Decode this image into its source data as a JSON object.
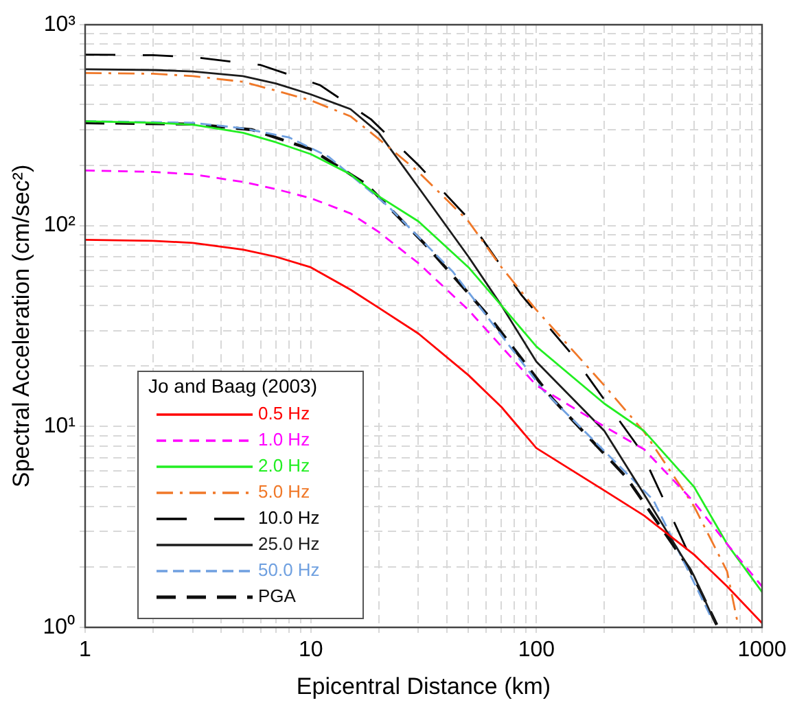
{
  "chart_data": {
    "type": "line",
    "xlabel": "Epicentral Distance (km)",
    "ylabel": "Spectral Acceleration (cm/sec²)",
    "legend_title": "Jo and Baag (2003)",
    "log": "xy",
    "grid": true,
    "legend": "bottom left",
    "marker": "none",
    "xlim": [
      1,
      1000
    ],
    "ylim": [
      1,
      1000
    ],
    "xticks": [
      1,
      {
        "value": 2,
        "label": null
      },
      {
        "value": 3,
        "label": null
      },
      {
        "value": 4,
        "label": null
      },
      {
        "value": 5,
        "label": null
      },
      {
        "value": 6,
        "label": null
      },
      {
        "value": 7,
        "label": null
      },
      {
        "value": 8,
        "label": null
      },
      {
        "value": 9,
        "label": null
      },
      10,
      {
        "value": 20,
        "label": null
      },
      {
        "value": 30,
        "label": null
      },
      {
        "value": 40,
        "label": null
      },
      {
        "value": 50,
        "label": null
      },
      {
        "value": 60,
        "label": null
      },
      {
        "value": 70,
        "label": null
      },
      {
        "value": 80,
        "label": null
      },
      {
        "value": 90,
        "label": null
      },
      100,
      {
        "value": 200,
        "label": null
      },
      {
        "value": 300,
        "label": null
      },
      {
        "value": 400,
        "label": null
      },
      {
        "value": 500,
        "label": null
      },
      {
        "value": 600,
        "label": null
      },
      {
        "value": 700,
        "label": null
      },
      {
        "value": 800,
        "label": null
      },
      {
        "value": 900,
        "label": null
      },
      1000
    ],
    "yticks": [
      {
        "value": 1,
        "label": "10⁰"
      },
      {
        "value": 2,
        "label": null
      },
      {
        "value": 3,
        "label": null
      },
      {
        "value": 4,
        "label": null
      },
      {
        "value": 5,
        "label": null
      },
      {
        "value": 6,
        "label": null
      },
      {
        "value": 7,
        "label": null
      },
      {
        "value": 8,
        "label": null
      },
      {
        "value": 9,
        "label": null
      },
      {
        "value": 10,
        "label": "10¹"
      },
      {
        "value": 20,
        "label": null
      },
      {
        "value": 30,
        "label": null
      },
      {
        "value": 40,
        "label": null
      },
      {
        "value": 50,
        "label": null
      },
      {
        "value": 60,
        "label": null
      },
      {
        "value": 70,
        "label": null
      },
      {
        "value": 80,
        "label": null
      },
      {
        "value": 90,
        "label": null
      },
      {
        "value": 100,
        "label": "10²"
      },
      {
        "value": 200,
        "label": null
      },
      {
        "value": 300,
        "label": null
      },
      {
        "value": 400,
        "label": null
      },
      {
        "value": 500,
        "label": null
      },
      {
        "value": 600,
        "label": null
      },
      {
        "value": 700,
        "label": null
      },
      {
        "value": 800,
        "label": null
      },
      {
        "value": 900,
        "label": null
      },
      {
        "value": 1000,
        "label": "10³"
      }
    ],
    "series": [
      {
        "name": "0.5 Hz",
        "color": "#ff0000",
        "line_style": "solid",
        "x": [
          1,
          2,
          3,
          5,
          7,
          10,
          15,
          20,
          30,
          50,
          70,
          100,
          200,
          300,
          500,
          700,
          1000
        ],
        "values": [
          85,
          84,
          82,
          76,
          70,
          62,
          48,
          39,
          29,
          18,
          12.5,
          7.8,
          4.8,
          3.6,
          2.3,
          1.6,
          1.05
        ]
      },
      {
        "name": "1.0 Hz",
        "color": "#ff00ff",
        "line_style": "dashed",
        "x": [
          1,
          2,
          3,
          5,
          7,
          10,
          15,
          20,
          30,
          50,
          70,
          100,
          200,
          300,
          500,
          700,
          1000
        ],
        "values": [
          188,
          185,
          180,
          165,
          152,
          137,
          115,
          93,
          65,
          38,
          25,
          16,
          10,
          7.7,
          4.2,
          2.6,
          1.6
        ]
      },
      {
        "name": "2.0 Hz",
        "color": "#22ee22",
        "line_style": "solid",
        "x": [
          1,
          2,
          3,
          5,
          7,
          10,
          15,
          20,
          30,
          50,
          70,
          100,
          200,
          300,
          500,
          700,
          1000
        ],
        "values": [
          331,
          325,
          318,
          290,
          260,
          227,
          180,
          140,
          105,
          62,
          40,
          25,
          13,
          9.5,
          5,
          2.6,
          1.5
        ]
      },
      {
        "name": "5.0 Hz",
        "color": "#f07828",
        "line_style": "dashed",
        "x": [
          1,
          2,
          3,
          5,
          7,
          10,
          15,
          20,
          30,
          50,
          70,
          100,
          200,
          300,
          500,
          700,
          780
        ],
        "values": [
          575,
          570,
          555,
          520,
          470,
          420,
          350,
          270,
          185,
          105,
          62,
          38,
          16,
          9.4,
          4,
          1.9,
          1.05
        ]
      },
      {
        "name": "10.0 Hz",
        "color": "#000000",
        "line_style": "dashed",
        "x": [
          1,
          2,
          3,
          6,
          11,
          18.5,
          30,
          49,
          86,
          143,
          290,
          400,
          510
        ],
        "values": [
          710,
          705,
          690,
          630,
          500,
          338,
          200,
          111,
          45,
          23,
          7.6,
          3.5,
          1.94
        ]
      },
      {
        "name": "25.0 Hz",
        "color": "#1c1c1c",
        "line_style": "solid",
        "x": [
          1,
          2,
          3,
          5,
          7,
          10,
          15,
          20,
          30,
          50,
          70,
          100,
          200,
          300,
          500,
          620
        ],
        "values": [
          600,
          595,
          585,
          555,
          510,
          450,
          380,
          290,
          155,
          70,
          40,
          21,
          9.5,
          4.6,
          1.8,
          1.05
        ]
      },
      {
        "name": "50.0 Hz",
        "color": "#6fa0e0",
        "line_style": "dashed",
        "x": [
          1,
          3,
          5,
          8,
          12,
          22,
          42.6,
          108,
          180,
          330,
          600
        ],
        "values": [
          331,
          325,
          305,
          275,
          220,
          125,
          59,
          15,
          8.5,
          4.3,
          1.1
        ]
      },
      {
        "name": "PGA",
        "color": "#0e0e0e",
        "line_style": "dashed",
        "x": [
          1,
          3,
          5.5,
          10,
          17.7,
          32,
          62,
          118,
          250,
          480,
          630
        ],
        "values": [
          325,
          320,
          300,
          240,
          160,
          81,
          35,
          13.7,
          5.6,
          1.94,
          1.03
        ]
      }
    ]
  }
}
